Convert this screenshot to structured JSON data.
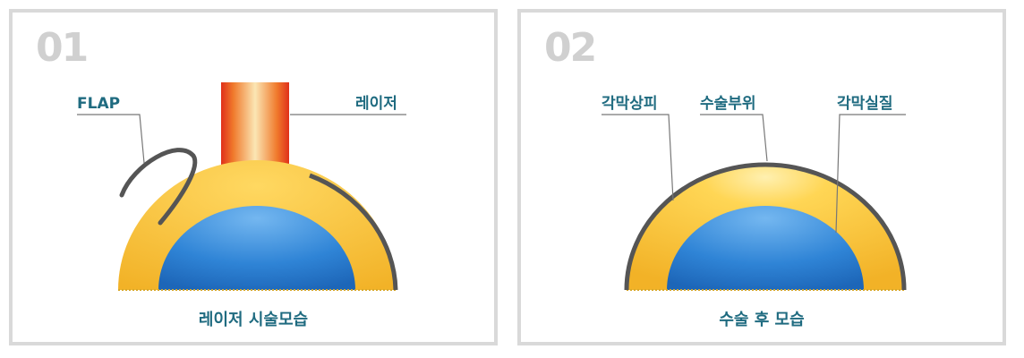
{
  "panels": [
    {
      "number": "01",
      "description": "",
      "labels": {
        "flap": "FLAP",
        "laser": "레이저"
      },
      "caption": "레이저 시술모습"
    },
    {
      "number": "02",
      "description": "",
      "labels": {
        "epithelium": "각막상피",
        "surgical_site": "수술부위",
        "stroma": "각막실질"
      },
      "caption": "수술 후 모습"
    }
  ],
  "colors": {
    "border": "#d9d9d9",
    "label": "#1f6b80",
    "outline": "#555555",
    "cornea_yellow": "#f6be2f",
    "eye_blue": "#2f84d6",
    "laser_red": "#e03a1c"
  }
}
